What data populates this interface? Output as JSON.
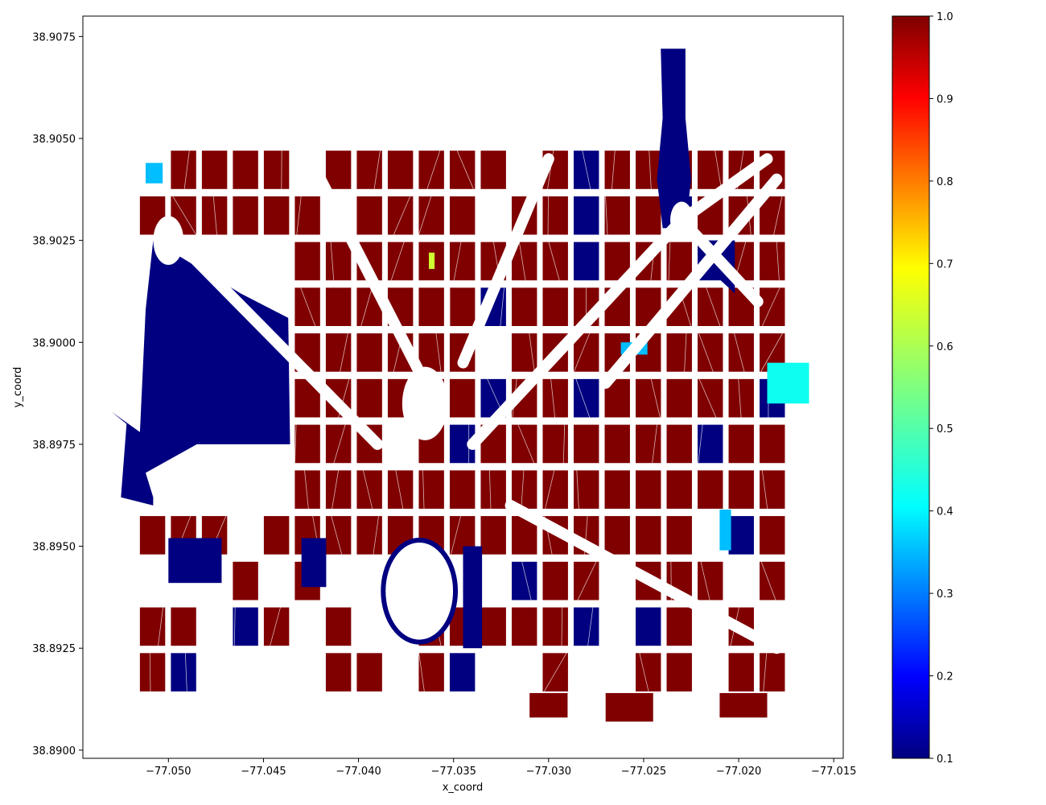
{
  "chart_data": {
    "type": "map",
    "xlabel": "x_coord",
    "ylabel": "y_coord",
    "xlim": [
      -77.0545,
      -77.0145
    ],
    "ylim": [
      38.8898,
      38.908
    ],
    "x_ticks": [
      -77.05,
      -77.045,
      -77.04,
      -77.035,
      -77.03,
      -77.025,
      -77.02,
      -77.015
    ],
    "x_tick_labels": [
      "−77.050",
      "−77.045",
      "−77.040",
      "−77.035",
      "−77.030",
      "−77.025",
      "−77.020",
      "−77.015"
    ],
    "y_ticks": [
      38.9075,
      38.905,
      38.9025,
      38.9,
      38.8975,
      38.895,
      38.8925,
      38.89
    ],
    "y_tick_labels": [
      "38.9075",
      "38.9050",
      "38.9025",
      "38.9000",
      "38.8975",
      "38.8950",
      "38.8925",
      "38.8900"
    ],
    "colorbar": {
      "colormap": "jet",
      "range": [
        0.1,
        1.0
      ],
      "ticks": [
        0.1,
        0.2,
        0.3,
        0.4,
        0.5,
        0.6,
        0.7,
        0.8,
        0.9,
        1.0
      ],
      "tick_labels": [
        "0.1",
        "0.2",
        "0.3",
        "0.4",
        "0.5",
        "0.6",
        "0.7",
        "0.8",
        "0.9",
        "1.0"
      ]
    },
    "grid": false,
    "polygons_description_values": {
      "dominant_value": 1.0,
      "low_value": 0.1
    },
    "features": [
      {
        "name": "west-lowvalue-region",
        "value": 0.1,
        "pts": [
          [
            -77.0508,
            38.9025
          ],
          [
            -77.0462,
            38.9012
          ],
          [
            -77.0437,
            38.9006
          ],
          [
            -77.0436,
            38.8975
          ],
          [
            -77.0485,
            38.8975
          ],
          [
            -77.0512,
            38.8968
          ],
          [
            -77.0508,
            38.8962
          ],
          [
            -77.0508,
            38.896
          ],
          [
            -77.0525,
            38.8962
          ],
          [
            -77.0522,
            38.898
          ],
          [
            -77.053,
            38.8983
          ],
          [
            -77.0515,
            38.8978
          ],
          [
            -77.0512,
            38.9008
          ]
        ]
      },
      {
        "name": "north-lowvalue-tower",
        "value": 0.1,
        "pts": [
          [
            -77.0241,
            38.9072
          ],
          [
            -77.0228,
            38.9072
          ],
          [
            -77.0228,
            38.9055
          ],
          [
            -77.0225,
            38.904
          ],
          [
            -77.0228,
            38.9028
          ],
          [
            -77.024,
            38.9028
          ],
          [
            -77.0243,
            38.904
          ],
          [
            -77.024,
            38.9055
          ]
        ]
      },
      {
        "name": "east-lowvalue-block-a",
        "value": 0.1,
        "pts": [
          [
            -77.0216,
            38.9025
          ],
          [
            -77.0202,
            38.9025
          ],
          [
            -77.0202,
            38.9012
          ],
          [
            -77.0216,
            38.9018
          ]
        ]
      },
      {
        "name": "ellipse-ring",
        "value": 0.1,
        "ring": {
          "cx": -77.0368,
          "cy": 38.8939,
          "rx": 0.0019,
          "ry": 0.00125
        }
      },
      {
        "name": "teal-block-east",
        "value": 0.45,
        "pts": [
          [
            -77.0185,
            38.8995
          ],
          [
            -77.0163,
            38.8995
          ],
          [
            -77.0163,
            38.8985
          ],
          [
            -77.0185,
            38.8985
          ]
        ]
      },
      {
        "name": "lightblue-block-a",
        "value": 0.38,
        "pts": [
          [
            -77.0512,
            38.9044
          ],
          [
            -77.0503,
            38.9044
          ],
          [
            -77.0503,
            38.9039
          ],
          [
            -77.0512,
            38.9039
          ]
        ]
      },
      {
        "name": "lightblue-block-b",
        "value": 0.38,
        "pts": [
          [
            -77.0262,
            38.9
          ],
          [
            -77.0248,
            38.9
          ],
          [
            -77.0248,
            38.8997
          ],
          [
            -77.0262,
            38.8997
          ]
        ]
      },
      {
        "name": "lightblue-block-c",
        "value": 0.38,
        "pts": [
          [
            -77.021,
            38.8959
          ],
          [
            -77.0204,
            38.8959
          ],
          [
            -77.0204,
            38.8949
          ],
          [
            -77.021,
            38.8949
          ]
        ]
      },
      {
        "name": "green-block",
        "value": 0.62,
        "pts": [
          [
            -77.0363,
            38.9022
          ],
          [
            -77.036,
            38.9022
          ],
          [
            -77.036,
            38.9018
          ],
          [
            -77.0363,
            38.9018
          ]
        ]
      }
    ]
  }
}
